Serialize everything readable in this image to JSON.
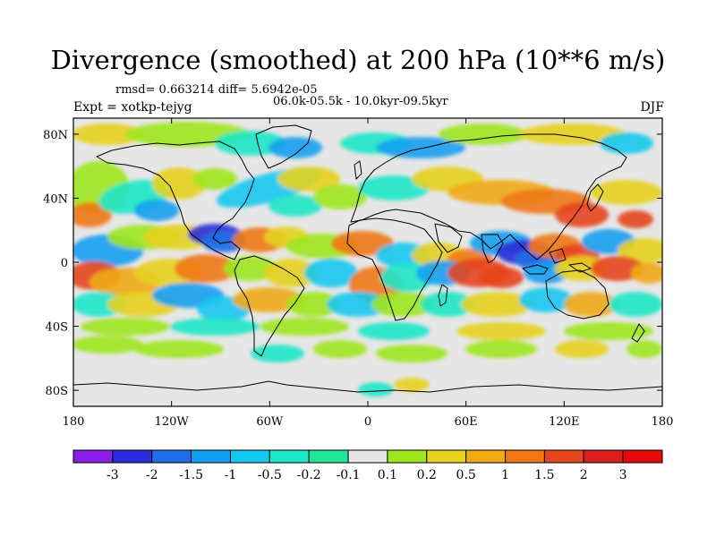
{
  "title": "Divergence (smoothed) at 200 hPa (10**6 m/s)",
  "stats": "rmsd= 0.663214 diff= 5.6942e-05",
  "period": "06.0k-05.5k - 10.0kyr-09.5kyr",
  "experiment": "Expt = xotkp-tejyg",
  "season": "DJF",
  "lat_ticks": [
    "80N",
    "40N",
    "0",
    "40S",
    "80S"
  ],
  "lat_values": [
    80,
    40,
    0,
    -40,
    -80
  ],
  "lon_ticks": [
    "180",
    "120W",
    "60W",
    "0",
    "60E",
    "120E",
    "180"
  ],
  "lon_values": [
    -180,
    -120,
    -60,
    0,
    60,
    120,
    180
  ],
  "colorbar": {
    "labels": [
      "-3",
      "-2",
      "-1.5",
      "-1",
      "-0.5",
      "-0.2",
      "-0.1",
      "0.1",
      "0.2",
      "0.5",
      "1",
      "1.5",
      "2",
      "3"
    ],
    "colors": [
      "#8a1ee6",
      "#2d2ddc",
      "#1e6ee6",
      "#14a0f0",
      "#14c8f0",
      "#1ee6c8",
      "#1ee696",
      "#e6e6e6",
      "#9ee61e",
      "#e6d21e",
      "#f0aa14",
      "#f07814",
      "#e6461e",
      "#dc1e1e",
      "#e60a0a"
    ]
  },
  "icons": {
    "map": "world-map-icon"
  }
}
